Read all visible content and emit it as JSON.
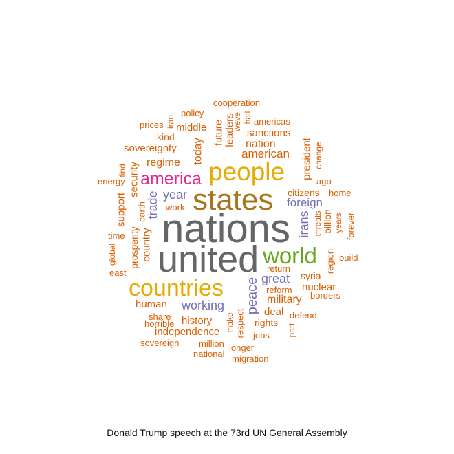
{
  "caption": "Donald Trump speech at the 73rd UN General Assembly",
  "colors": {
    "grey": "#666666",
    "gold": "#e6ab02",
    "brown": "#a6761d",
    "green": "#66a61e",
    "purple": "#7570b3",
    "magenta": "#e7298a",
    "orange": "#d95f02"
  },
  "words": [
    {
      "text": "nations",
      "color": "grey"
    },
    {
      "text": "united",
      "color": "grey"
    },
    {
      "text": "states",
      "color": "brown"
    },
    {
      "text": "people",
      "color": "gold"
    },
    {
      "text": "countries",
      "color": "gold"
    },
    {
      "text": "world",
      "color": "green"
    },
    {
      "text": "america",
      "color": "magenta"
    },
    {
      "text": "year",
      "color": "purple"
    },
    {
      "text": "foreign",
      "color": "purple"
    },
    {
      "text": "great",
      "color": "purple"
    },
    {
      "text": "working",
      "color": "purple"
    },
    {
      "text": "peace",
      "color": "purple"
    },
    {
      "text": "trade",
      "color": "purple"
    },
    {
      "text": "irans",
      "color": "purple"
    },
    {
      "text": "cooperation",
      "color": "orange"
    },
    {
      "text": "policy",
      "color": "orange"
    },
    {
      "text": "iran",
      "color": "orange"
    },
    {
      "text": "hall",
      "color": "orange"
    },
    {
      "text": "americas",
      "color": "orange"
    },
    {
      "text": "prices",
      "color": "orange"
    },
    {
      "text": "middle",
      "color": "orange"
    },
    {
      "text": "weve",
      "color": "orange"
    },
    {
      "text": "leaders",
      "color": "orange"
    },
    {
      "text": "future",
      "color": "orange"
    },
    {
      "text": "sanctions",
      "color": "orange"
    },
    {
      "text": "kind",
      "color": "orange"
    },
    {
      "text": "sovereignty",
      "color": "orange"
    },
    {
      "text": "today",
      "color": "orange"
    },
    {
      "text": "nation",
      "color": "orange"
    },
    {
      "text": "american",
      "color": "orange"
    },
    {
      "text": "president",
      "color": "orange"
    },
    {
      "text": "change",
      "color": "orange"
    },
    {
      "text": "regime",
      "color": "orange"
    },
    {
      "text": "find",
      "color": "orange"
    },
    {
      "text": "security",
      "color": "orange"
    },
    {
      "text": "energy",
      "color": "orange"
    },
    {
      "text": "ago",
      "color": "orange"
    },
    {
      "text": "citizens",
      "color": "orange"
    },
    {
      "text": "home",
      "color": "orange"
    },
    {
      "text": "support",
      "color": "orange"
    },
    {
      "text": "earth",
      "color": "orange"
    },
    {
      "text": "work",
      "color": "orange"
    },
    {
      "text": "threats",
      "color": "orange"
    },
    {
      "text": "billion",
      "color": "orange"
    },
    {
      "text": "years",
      "color": "orange"
    },
    {
      "text": "forever",
      "color": "orange"
    },
    {
      "text": "time",
      "color": "orange"
    },
    {
      "text": "prosperity",
      "color": "orange"
    },
    {
      "text": "country",
      "color": "orange"
    },
    {
      "text": "global",
      "color": "orange"
    },
    {
      "text": "east",
      "color": "orange"
    },
    {
      "text": "build",
      "color": "orange"
    },
    {
      "text": "region",
      "color": "orange"
    },
    {
      "text": "return",
      "color": "orange"
    },
    {
      "text": "syria",
      "color": "orange"
    },
    {
      "text": "reform",
      "color": "orange"
    },
    {
      "text": "nuclear",
      "color": "orange"
    },
    {
      "text": "military",
      "color": "orange"
    },
    {
      "text": "borders",
      "color": "orange"
    },
    {
      "text": "human",
      "color": "orange"
    },
    {
      "text": "deal",
      "color": "orange"
    },
    {
      "text": "defend",
      "color": "orange"
    },
    {
      "text": "share",
      "color": "orange"
    },
    {
      "text": "history",
      "color": "orange"
    },
    {
      "text": "rights",
      "color": "orange"
    },
    {
      "text": "horrible",
      "color": "orange"
    },
    {
      "text": "make",
      "color": "orange"
    },
    {
      "text": "respect",
      "color": "orange"
    },
    {
      "text": "part",
      "color": "orange"
    },
    {
      "text": "independence",
      "color": "orange"
    },
    {
      "text": "jobs",
      "color": "orange"
    },
    {
      "text": "sovereign",
      "color": "orange"
    },
    {
      "text": "million",
      "color": "orange"
    },
    {
      "text": "longer",
      "color": "orange"
    },
    {
      "text": "national",
      "color": "orange"
    },
    {
      "text": "migration",
      "color": "orange"
    }
  ]
}
